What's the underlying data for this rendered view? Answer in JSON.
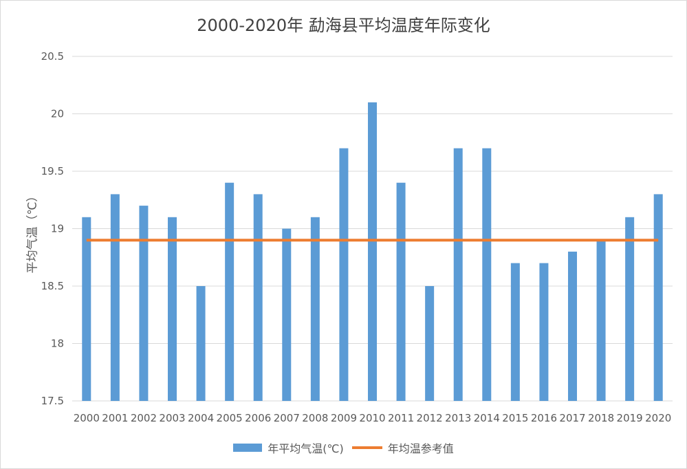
{
  "chart_data": {
    "type": "bar",
    "title": "2000-2020年 勐海县平均温度年际变化",
    "xlabel": "",
    "ylabel": "平均气温（℃）",
    "ylim": [
      17.5,
      20.5
    ],
    "yticks": [
      "17.5",
      "18",
      "18.5",
      "19",
      "19.5",
      "20",
      "20.5"
    ],
    "ytick_values": [
      17.5,
      18,
      18.5,
      19,
      19.5,
      20,
      20.5
    ],
    "categories": [
      "2000",
      "2001",
      "2002",
      "2003",
      "2004",
      "2005",
      "2006",
      "2007",
      "2008",
      "2009",
      "2010",
      "2011",
      "2012",
      "2013",
      "2014",
      "2015",
      "2016",
      "2017",
      "2018",
      "2019",
      "2020"
    ],
    "series": [
      {
        "name": "年平均气温(℃)",
        "type": "bar",
        "color": "#5b9bd5",
        "values": [
          19.1,
          19.3,
          19.2,
          19.1,
          18.5,
          19.4,
          19.3,
          19.0,
          19.1,
          19.7,
          20.1,
          19.4,
          18.5,
          19.7,
          19.7,
          18.7,
          18.7,
          18.8,
          18.9,
          19.1,
          19.3
        ]
      },
      {
        "name": "年均温参考值",
        "type": "line",
        "color": "#ed7d31",
        "values": [
          18.9,
          18.9,
          18.9,
          18.9,
          18.9,
          18.9,
          18.9,
          18.9,
          18.9,
          18.9,
          18.9,
          18.9,
          18.9,
          18.9,
          18.9,
          18.9,
          18.9,
          18.9,
          18.9,
          18.9,
          18.9
        ]
      }
    ],
    "grid": true,
    "legend_position": "bottom"
  }
}
